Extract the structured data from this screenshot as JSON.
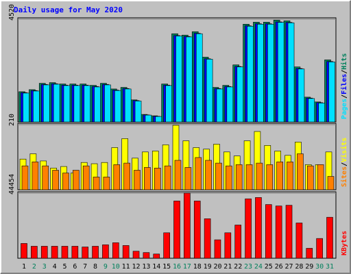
{
  "chart_data": [
    {
      "type": "bar",
      "title": "Daily usage for May 2020",
      "separator": "/",
      "ylim": [
        0,
        4520
      ],
      "yticks": [
        4520
      ],
      "series": [
        {
          "name": "Hits",
          "color": "#00805c",
          "values": [
            1330,
            1420,
            1700,
            1730,
            1670,
            1670,
            1670,
            1610,
            1700,
            1450,
            1520,
            970,
            330,
            270,
            1670,
            3880,
            3820,
            3970,
            2850,
            1520,
            1610,
            2510,
            4300,
            4390,
            4390,
            4480,
            4450,
            2420,
            1090,
            880,
            2730
          ]
        },
        {
          "name": "Files",
          "color": "#0000ff",
          "values": [
            1290,
            1380,
            1650,
            1680,
            1620,
            1620,
            1620,
            1560,
            1650,
            1400,
            1470,
            940,
            310,
            250,
            1620,
            3800,
            3760,
            3900,
            2780,
            1470,
            1560,
            2440,
            4230,
            4320,
            4320,
            4400,
            4380,
            2350,
            1050,
            850,
            2660
          ]
        },
        {
          "name": "Pages",
          "color": "#00e0ff",
          "values": [
            1270,
            1360,
            1630,
            1660,
            1600,
            1600,
            1600,
            1540,
            1630,
            1380,
            1450,
            920,
            300,
            240,
            1600,
            3780,
            3740,
            3880,
            2760,
            1450,
            1540,
            2420,
            4210,
            4300,
            4300,
            4380,
            4360,
            2330,
            1030,
            830,
            2640
          ]
        }
      ]
    },
    {
      "type": "bar",
      "separator": "/",
      "ylim": [
        0,
        210
      ],
      "yticks": [
        210
      ],
      "series": [
        {
          "name": "Visits",
          "color": "#ffff00",
          "values": [
            99,
            116,
            93,
            70,
            75,
            54,
            88,
            84,
            88,
            136,
            165,
            102,
            122,
            125,
            145,
            208,
            158,
            136,
            131,
            147,
            122,
            109,
            158,
            188,
            143,
            125,
            111,
            154,
            81,
            81,
            122
          ]
        },
        {
          "name": "Sites",
          "color": "#ff8000",
          "values": [
            77,
            90,
            77,
            63,
            54,
            63,
            77,
            41,
            41,
            81,
            86,
            63,
            72,
            70,
            77,
            95,
            72,
            104,
            95,
            86,
            77,
            81,
            81,
            86,
            81,
            90,
            90,
            116,
            77,
            81,
            43
          ]
        }
      ]
    },
    {
      "type": "bar",
      "ylim": [
        0,
        44454
      ],
      "yticks": [
        44454
      ],
      "categories": [
        "1",
        "2",
        "3",
        "4",
        "5",
        "6",
        "7",
        "8",
        "9",
        "10",
        "11",
        "12",
        "13",
        "14",
        "15",
        "16",
        "17",
        "18",
        "19",
        "20",
        "21",
        "22",
        "23",
        "24",
        "25",
        "26",
        "27",
        "28",
        "29",
        "30",
        "31"
      ],
      "category_colors": [
        "#000",
        "#00805c",
        "#00805c",
        "#000",
        "#000",
        "#000",
        "#000",
        "#000",
        "#00805c",
        "#00805c",
        "#000",
        "#000",
        "#000",
        "#000",
        "#000",
        "#00805c",
        "#00805c",
        "#000",
        "#000",
        "#000",
        "#000",
        "#000",
        "#00805c",
        "#00805c",
        "#000",
        "#000",
        "#000",
        "#000",
        "#000",
        "#00805c",
        "#00805c"
      ],
      "series": [
        {
          "name": "KBytes",
          "color": "#ff0000",
          "values": [
            10100,
            8200,
            8200,
            8200,
            8200,
            8200,
            7700,
            8200,
            9200,
            10600,
            8700,
            4800,
            3900,
            2900,
            17400,
            39100,
            44454,
            39100,
            27000,
            12600,
            17400,
            22700,
            40600,
            41500,
            36700,
            35700,
            36200,
            24100,
            6800,
            13500,
            28000
          ]
        }
      ]
    }
  ]
}
